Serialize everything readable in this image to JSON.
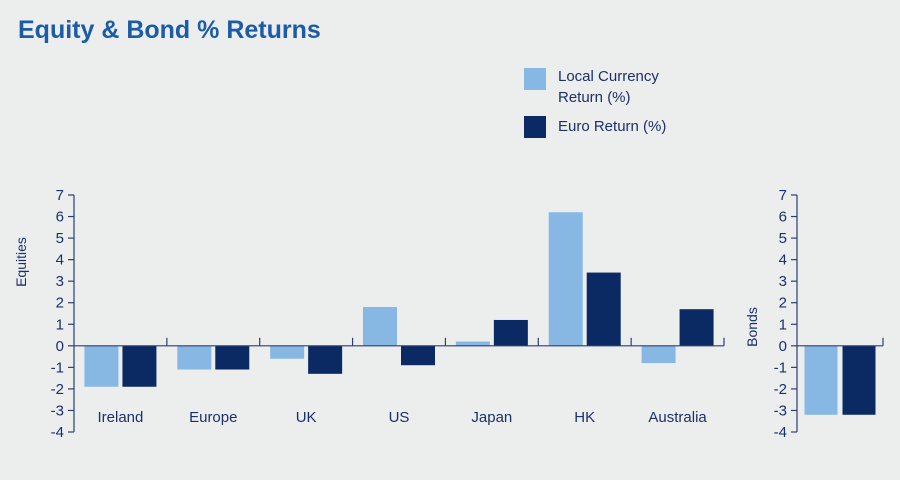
{
  "chart_data": [
    {
      "type": "bar",
      "title": "Equity & Bond % Returns",
      "ylabel": "Equities",
      "xlabel": "",
      "categories": [
        "Ireland",
        "Europe",
        "UK",
        "US",
        "Japan",
        "HK",
        "Australia"
      ],
      "series": [
        {
          "name": "Local Currency Return (%)",
          "color": "#86b8e3",
          "values": [
            -1.9,
            -1.1,
            -0.6,
            1.8,
            0.2,
            6.2,
            -0.8
          ]
        },
        {
          "name": "Euro Return (%)",
          "color": "#0b2a64",
          "values": [
            -1.9,
            -1.1,
            -1.3,
            -0.9,
            1.2,
            3.4,
            1.7
          ]
        }
      ],
      "ylim": [
        -4,
        7
      ],
      "yticks": [
        7,
        6,
        5,
        4,
        3,
        2,
        1,
        0,
        -1,
        -2,
        -3,
        -4
      ],
      "legend": "top-right",
      "grid": false
    },
    {
      "type": "bar",
      "ylabel": "Bonds",
      "categories": [
        ""
      ],
      "series": [
        {
          "name": "Local Currency Return (%)",
          "color": "#86b8e3",
          "values": [
            -3.2
          ]
        },
        {
          "name": "Euro Return (%)",
          "color": "#0b2a64",
          "values": [
            -3.2
          ]
        }
      ],
      "ylim": [
        -4,
        7
      ],
      "yticks": [
        7,
        6,
        5,
        4,
        3,
        2,
        1,
        0,
        -1,
        -2,
        -3,
        -4
      ],
      "grid": false
    }
  ],
  "legend": {
    "local_line1": "Local Currency",
    "local_line2": "Return (%)",
    "euro": "Euro Return (%)"
  }
}
